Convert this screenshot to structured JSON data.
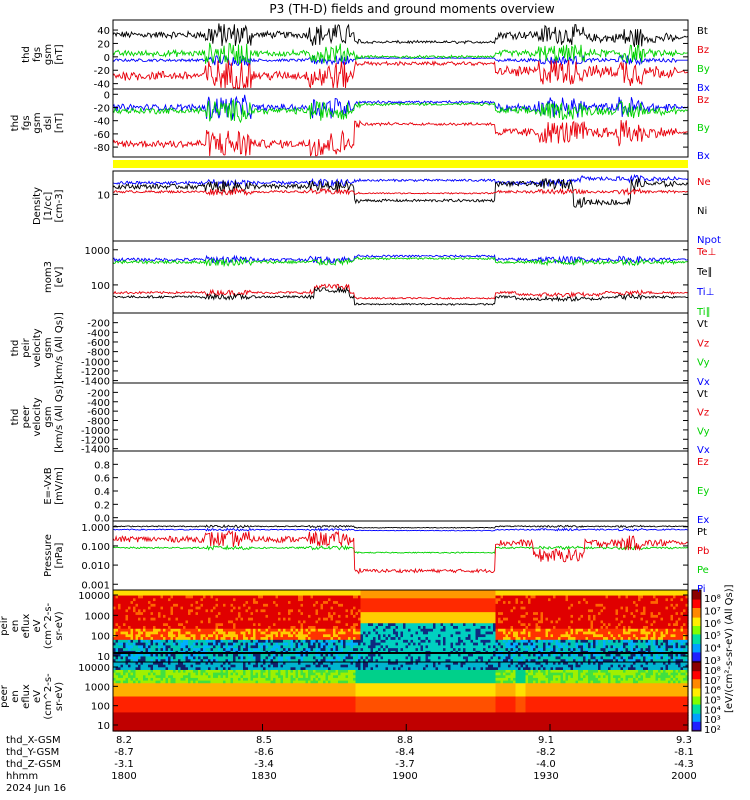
{
  "title": "P3 (TH-D) fields and ground moments overview",
  "colors": {
    "black": "#000000",
    "red": "#e8000b",
    "green": "#00d200",
    "blue": "#0000ff",
    "yellow": "#ffff00"
  },
  "chart_data": [
    {
      "type": "line",
      "ylabel_lines": [
        "thd",
        "fgs",
        "gsm",
        "[nT]"
      ],
      "ylim": [
        -48,
        55
      ],
      "ticks": [
        40,
        20,
        0,
        -20,
        -40
      ],
      "legend": [
        {
          "name": "Bt",
          "color": "black"
        },
        {
          "name": "Bz",
          "color": "red"
        },
        {
          "name": "By",
          "color": "green"
        },
        {
          "name": "Bx",
          "color": "blue"
        }
      ]
    },
    {
      "type": "line",
      "ylabel_lines": [
        "thd",
        "fgs",
        "gsm",
        "dsl",
        "[nT]"
      ],
      "ylim": [
        -95,
        8
      ],
      "ticks": [
        0,
        -20,
        -40,
        -60,
        -80
      ],
      "legend": [
        {
          "name": "Bz",
          "color": "red"
        },
        {
          "name": "By",
          "color": "green"
        },
        {
          "name": "Bx",
          "color": "blue"
        }
      ]
    },
    {
      "type": "line",
      "ylabel_lines": [
        "Density",
        "[1/cc]",
        "[cm-3]"
      ],
      "ylim_log10": [
        0.1,
        1.45
      ],
      "ticks": [
        "10"
      ],
      "legend": [
        {
          "name": "Ne",
          "color": "red"
        },
        {
          "name": "Ni",
          "color": "black"
        },
        {
          "name": "Npot",
          "color": "blue"
        }
      ]
    },
    {
      "type": "line",
      "ylabel_lines": [
        "mom3",
        "[eV]"
      ],
      "ylim_log10": [
        1.2,
        3.25
      ],
      "ticks": [
        "1000",
        "100"
      ],
      "legend": [
        {
          "name": "Te⊥",
          "color": "red"
        },
        {
          "name": "Te∥",
          "color": "black"
        },
        {
          "name": "Ti⊥",
          "color": "blue"
        },
        {
          "name": "Ti∥",
          "color": "green"
        }
      ]
    },
    {
      "type": "line",
      "ylabel_lines": [
        "thd",
        "peir",
        "velocity",
        "gsm",
        "[km/s (All Qs)]"
      ],
      "ylim": [
        -1450,
        0
      ],
      "ticks": [
        0,
        -200,
        -400,
        -600,
        -800,
        -1000,
        -1200,
        -1400
      ],
      "legend": [
        {
          "name": "Vt",
          "color": "black"
        },
        {
          "name": "Vz",
          "color": "red"
        },
        {
          "name": "Vy",
          "color": "green"
        },
        {
          "name": "Vx",
          "color": "blue"
        }
      ]
    },
    {
      "type": "line",
      "ylabel_lines": [
        "thd",
        "peer",
        "velocity",
        "gsm",
        "[km/s (All Qs)]"
      ],
      "ylim": [
        -1450,
        0
      ],
      "ticks": [
        -200,
        -400,
        -600,
        -800,
        -1000,
        -1200,
        -1400
      ],
      "legend": [
        {
          "name": "Vt",
          "color": "black"
        },
        {
          "name": "Vz",
          "color": "red"
        },
        {
          "name": "Vy",
          "color": "green"
        },
        {
          "name": "Vx",
          "color": "blue"
        }
      ]
    },
    {
      "type": "line",
      "ylabel_lines": [
        "E=-VxB",
        "[mV/m]"
      ],
      "ylim": [
        -0.05,
        1.0
      ],
      "ticks": [
        "1.0",
        "0.8",
        "0.6",
        "0.4",
        "0.2",
        "0.0"
      ],
      "legend": [
        {
          "name": "Ez",
          "color": "red"
        },
        {
          "name": "Ey",
          "color": "green"
        },
        {
          "name": "Ex",
          "color": "blue"
        }
      ]
    },
    {
      "type": "line",
      "ylabel_lines": [
        "Pressure",
        "[nPa]"
      ],
      "ylim_log10": [
        -3.3,
        0.3
      ],
      "ticks": [
        "1.000",
        "0.100",
        "0.010",
        "0.001"
      ],
      "legend": [
        {
          "name": "Pt",
          "color": "black"
        },
        {
          "name": "Pb",
          "color": "red"
        },
        {
          "name": "Pe",
          "color": "green"
        },
        {
          "name": "Pi",
          "color": "blue"
        }
      ]
    },
    {
      "type": "heatmap",
      "ylabel_lines": [
        "thd",
        "peir",
        "en",
        "eflux",
        "eV",
        "(cm^2-s-",
        "sr-eV)"
      ],
      "ticks": [
        "10000",
        "1000",
        "100",
        "10"
      ],
      "colorbar_ticks": [
        "10⁸",
        "10⁷",
        "10⁶",
        "10⁵",
        "10⁴",
        "10³"
      ]
    },
    {
      "type": "heatmap",
      "ylabel_lines": [
        "thd",
        "peer",
        "en",
        "eflux",
        "eV",
        "(cm^2-s-",
        "sr-eV)"
      ],
      "ticks": [
        "10000",
        "1000",
        "100",
        "10"
      ],
      "colorbar_ticks": [
        "10⁸",
        "10⁷",
        "10⁶",
        "10⁵",
        "10⁴",
        "10³",
        "10²"
      ]
    }
  ],
  "colorbar_label": "[eV/(cm²-s-sr-eV) (All Qs)]",
  "axis": {
    "rows": [
      {
        "label": "thd_X-GSM",
        "values": [
          "8.2",
          "8.5",
          "8.8",
          "9.1",
          "9.3"
        ]
      },
      {
        "label": "thd_Y-GSM",
        "values": [
          "-8.7",
          "-8.6",
          "-8.4",
          "-8.2",
          "-8.1"
        ]
      },
      {
        "label": "thd_Z-GSM",
        "values": [
          "-3.1",
          "-3.4",
          "-3.7",
          "-4.0",
          "-4.3"
        ]
      },
      {
        "label": "hhmm",
        "values": [
          "1800",
          "1830",
          "1900",
          "1930",
          "2000"
        ]
      }
    ],
    "date": "2024 Jun 16"
  }
}
